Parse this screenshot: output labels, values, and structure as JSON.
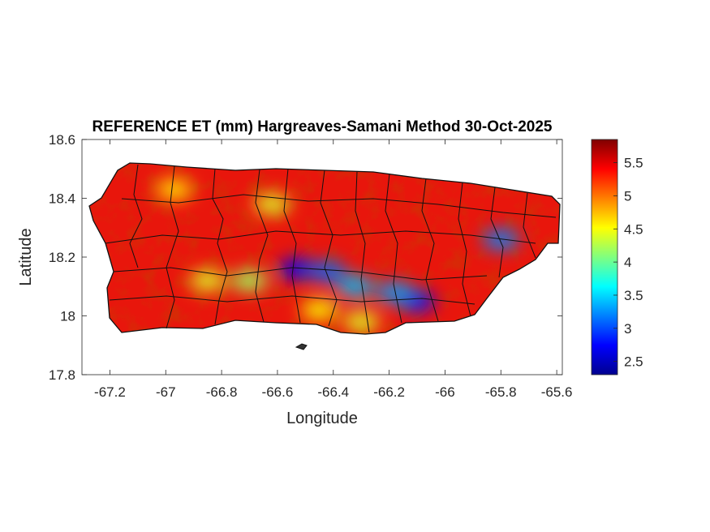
{
  "chart_data": {
    "type": "heatmap",
    "title": "REFERENCE ET (mm) Hargreaves-Samani Method  30-Oct-2025",
    "xlabel": "Longitude",
    "ylabel": "Latitude",
    "xlim": [
      -67.3,
      -65.58
    ],
    "ylim": [
      17.8,
      18.6
    ],
    "x_ticks": [
      -67.2,
      -67,
      -66.8,
      -66.6,
      -66.4,
      -66.2,
      -66,
      -65.8,
      -65.6
    ],
    "x_tick_labels": [
      "-67.2",
      "-67",
      "-66.8",
      "-66.6",
      "-66.4",
      "-66.2",
      "-66",
      "-65.8",
      "-65.6"
    ],
    "y_ticks": [
      17.8,
      18,
      18.2,
      18.4,
      18.6
    ],
    "y_tick_labels": [
      "17.8",
      "18",
      "18.2",
      "18.4",
      "18.6"
    ],
    "colorbar": {
      "colormap": "jet",
      "range": [
        2.3,
        5.85
      ],
      "ticks": [
        2.5,
        3,
        3.5,
        4,
        4.5,
        5,
        5.5
      ],
      "tick_labels": [
        "2.5",
        "3",
        "3.5",
        "4",
        "4.5",
        "5",
        "5.5"
      ]
    },
    "hotspots": [
      {
        "lon": -66.53,
        "lat": 18.16,
        "value": 2.7
      },
      {
        "lon": -66.42,
        "lat": 18.15,
        "value": 3.1
      },
      {
        "lon": -66.32,
        "lat": 18.1,
        "value": 3.4
      },
      {
        "lon": -66.1,
        "lat": 18.05,
        "value": 2.8
      },
      {
        "lon": -66.18,
        "lat": 18.08,
        "value": 3.3
      },
      {
        "lon": -65.8,
        "lat": 18.26,
        "value": 3.2
      },
      {
        "lon": -66.7,
        "lat": 18.12,
        "value": 4.2
      },
      {
        "lon": -66.85,
        "lat": 18.12,
        "value": 4.4
      },
      {
        "lon": -66.3,
        "lat": 17.98,
        "value": 4.4
      },
      {
        "lon": -66.62,
        "lat": 18.38,
        "value": 4.4
      },
      {
        "lon": -66.97,
        "lat": 18.43,
        "value": 4.6
      },
      {
        "lon": -66.45,
        "lat": 18.02,
        "value": 4.5
      }
    ],
    "grid": false
  }
}
